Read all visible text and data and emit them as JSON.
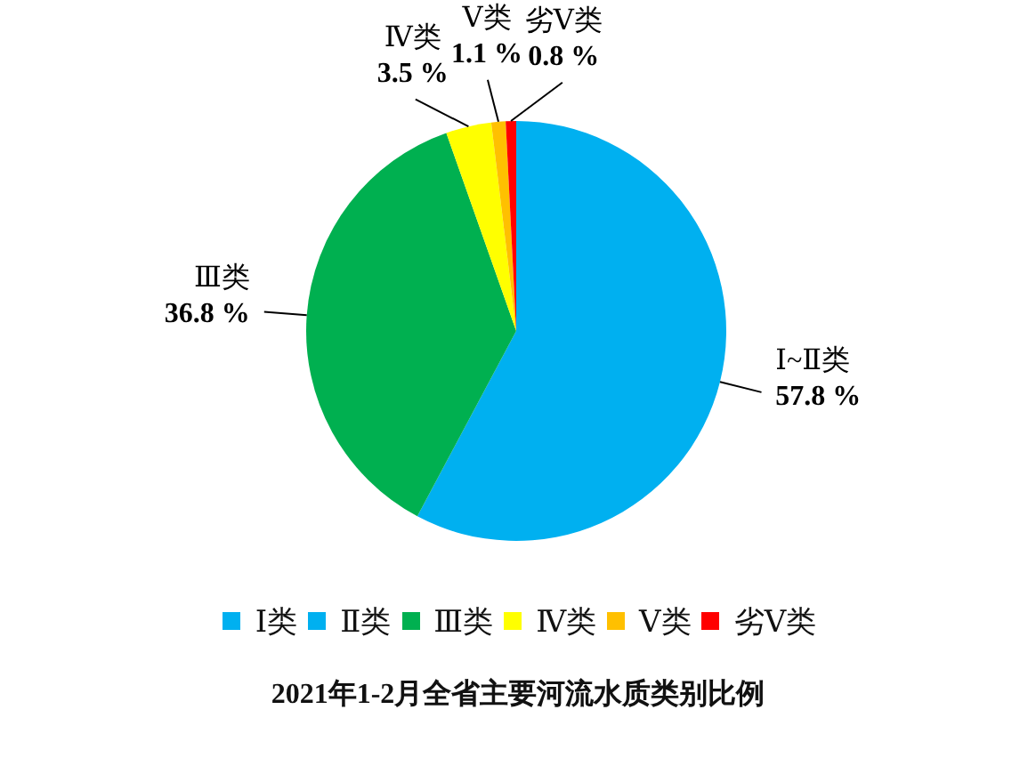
{
  "chart_data": {
    "type": "pie",
    "title": "2021年1-2月全省主要河流水质类别比例",
    "categories": [
      "Ⅰ类",
      "Ⅱ类",
      "Ⅲ类",
      "Ⅳ类",
      "Ⅴ类",
      "劣Ⅴ类"
    ],
    "values": [
      57.8,
      null,
      36.8,
      3.5,
      1.1,
      0.8
    ],
    "colors": [
      "#00b0f0",
      "#00b0f0",
      "#00b050",
      "#ffff00",
      "#ffc000",
      "#ff0000"
    ],
    "value_labels": [
      "57.8 %",
      null,
      "36.8 %",
      "3.5 %",
      "1.1 %",
      "0.8 %"
    ],
    "legend": "bottom",
    "annotations": [
      {
        "text": "Ⅰ~Ⅱ类",
        "x": "Ⅰ类"
      }
    ]
  }
}
